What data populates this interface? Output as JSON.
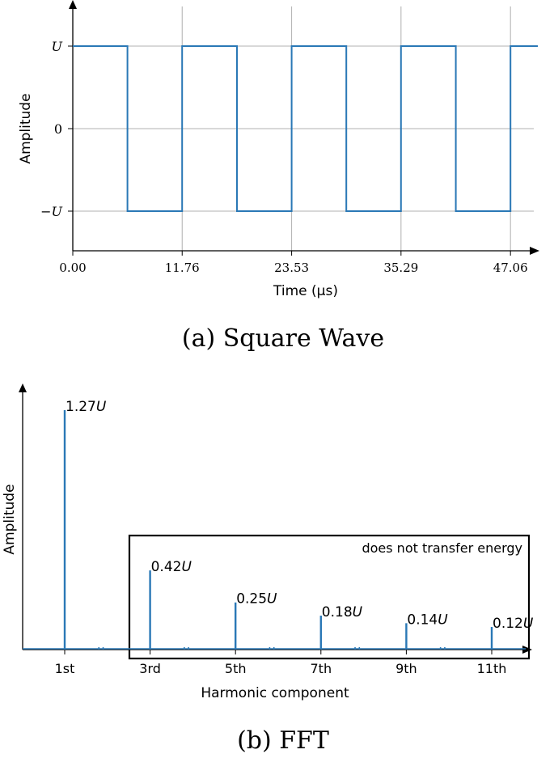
{
  "chart_data": [
    {
      "type": "line",
      "caption": "(a) Square Wave",
      "xlabel": "Time (μs)",
      "ylabel": "Amplitude",
      "x_ticks": [
        "0.00",
        "11.76",
        "23.53",
        "35.29",
        "47.06"
      ],
      "x_tick_values": [
        0,
        11.76,
        23.53,
        35.29,
        47.06
      ],
      "y_ticks": [
        "U",
        "0",
        "−U"
      ],
      "y_tick_values": [
        1,
        0,
        -1
      ],
      "xlim": [
        0,
        50
      ],
      "ylim": [
        -1.5,
        1.5
      ],
      "grid": true,
      "series": [
        {
          "x": [
            0,
            5.88,
            5.88,
            11.76,
            11.76,
            17.65,
            17.65,
            23.53,
            23.53,
            29.41,
            29.41,
            35.29,
            35.29,
            41.18,
            41.18,
            47.06,
            47.06,
            50
          ],
          "values": [
            1,
            1,
            -1,
            -1,
            1,
            1,
            -1,
            -1,
            1,
            1,
            -1,
            -1,
            1,
            1,
            -1,
            -1,
            1,
            1
          ]
        }
      ]
    },
    {
      "type": "bar",
      "caption": "(b) FFT",
      "xlabel": "Harmonic component",
      "ylabel": "Amplitude",
      "categories": [
        "1st",
        "3rd",
        "5th",
        "7th",
        "9th",
        "11th"
      ],
      "values": [
        1.27,
        0.42,
        0.25,
        0.18,
        0.14,
        0.12
      ],
      "data_labels": [
        "1.27U",
        "0.42U",
        "0.25U",
        "0.18U",
        "0.14U",
        "0.12U"
      ],
      "annotation": "does not transfer energy",
      "ylim": [
        0,
        1.27
      ]
    }
  ]
}
